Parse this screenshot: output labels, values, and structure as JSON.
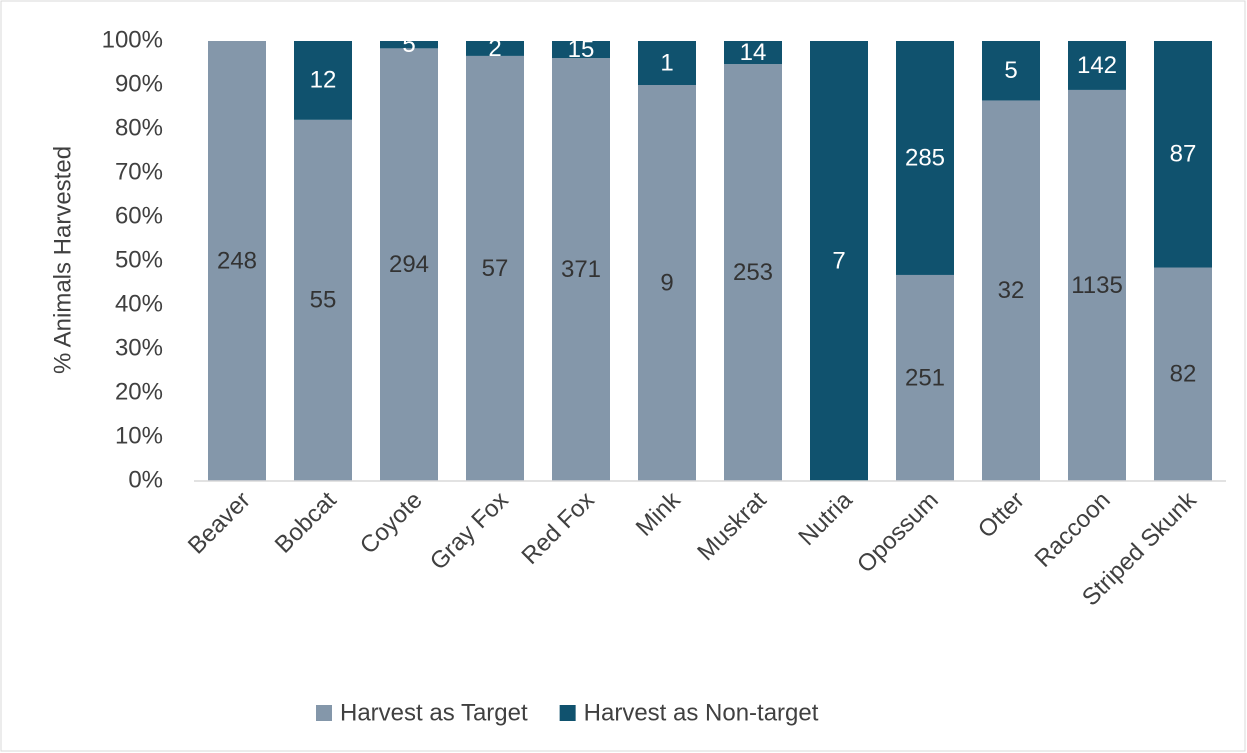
{
  "chart_data": {
    "type": "bar",
    "stacking": "percent",
    "y_label": "% Animals Harvested",
    "categories": [
      "Beaver",
      "Bobcat",
      "Coyote",
      "Gray Fox",
      "Red Fox",
      "Mink",
      "Muskrat",
      "Nutria",
      "Opossum",
      "Otter",
      "Raccoon",
      "Striped Skunk"
    ],
    "series": [
      {
        "name": "Harvest as Target",
        "color": "#8497aa",
        "label_color": "#333333",
        "values": [
          248,
          55,
          294,
          57,
          371,
          9,
          253,
          0,
          251,
          32,
          1135,
          82
        ]
      },
      {
        "name": "Harvest as Non-target",
        "color": "#10526e",
        "label_color": "#ffffff",
        "values": [
          0,
          12,
          5,
          2,
          15,
          1,
          14,
          7,
          285,
          5,
          142,
          87
        ]
      }
    ],
    "ylim": [
      0,
      100
    ],
    "yticks": [
      {
        "value": 0,
        "label": "0%"
      },
      {
        "value": 10,
        "label": "10%"
      },
      {
        "value": 20,
        "label": "20%"
      },
      {
        "value": 30,
        "label": "30%"
      },
      {
        "value": 40,
        "label": "40%"
      },
      {
        "value": 50,
        "label": "50%"
      },
      {
        "value": 60,
        "label": "60%"
      },
      {
        "value": 70,
        "label": "70%"
      },
      {
        "value": 80,
        "label": "80%"
      },
      {
        "value": 90,
        "label": "90%"
      },
      {
        "value": 100,
        "label": "100%"
      }
    ],
    "grid": false,
    "legend": "bottom"
  }
}
